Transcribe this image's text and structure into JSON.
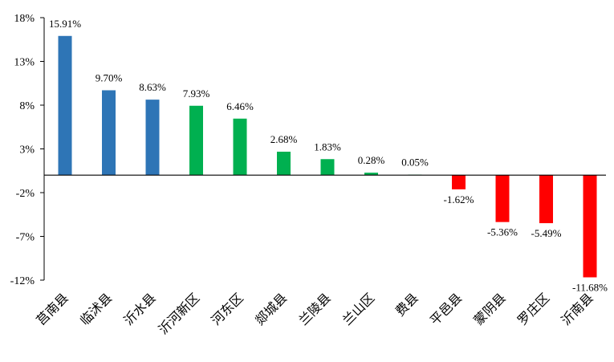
{
  "chart_data": {
    "type": "bar",
    "title": "",
    "xlabel": "",
    "ylabel": "",
    "ylim": [
      -12,
      18
    ],
    "yticks": [
      18,
      13,
      8,
      3,
      -2,
      -7,
      -12
    ],
    "ytick_labels": [
      "18%",
      "13%",
      "8%",
      "3%",
      "-2%",
      "-7%",
      "-12%"
    ],
    "grid": false,
    "legend": "none",
    "categories": [
      "莒南县",
      "临沭县",
      "沂水县",
      "沂河新区",
      "河东区",
      "郯城县",
      "兰陵县",
      "兰山区",
      "费县",
      "平邑县",
      "蒙阴县",
      "罗庄区",
      "沂南县"
    ],
    "values": [
      15.91,
      9.7,
      8.63,
      7.93,
      6.46,
      2.68,
      1.83,
      0.28,
      0.05,
      -1.62,
      -5.36,
      -5.49,
      -11.68
    ],
    "value_labels": [
      "15.91%",
      "9.70%",
      "8.63%",
      "7.93%",
      "6.46%",
      "2.68%",
      "1.83%",
      "0.28%",
      "0.05%",
      "-1.62%",
      "-5.36%",
      "-5.49%",
      "-11.68%"
    ],
    "bar_colors": [
      "#2E75B6",
      "#2E75B6",
      "#2E75B6",
      "#00B050",
      "#00B050",
      "#00B050",
      "#00B050",
      "#00B050",
      "#00B050",
      "#FF0000",
      "#FF0000",
      "#FF0000",
      "#FF0000"
    ]
  }
}
